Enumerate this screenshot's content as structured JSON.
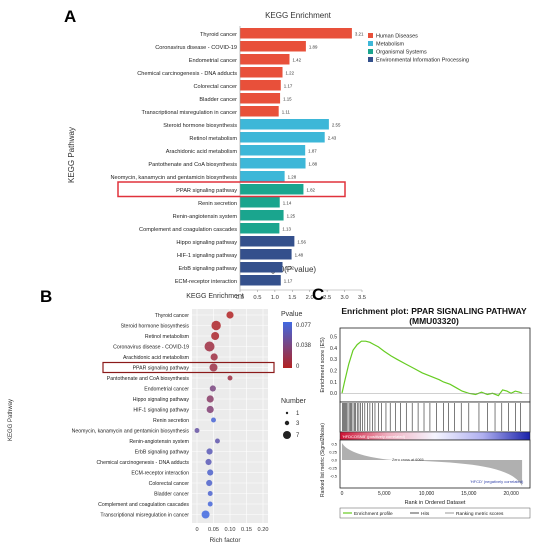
{
  "chart_data": [
    {
      "type": "bar",
      "panel_label": "A",
      "title": "KEGG Enrichment",
      "xlabel": "−log10(P value)",
      "ylabel": "KEGG Pathway",
      "xlim": [
        0,
        3.5
      ],
      "xticks": [
        "0.0",
        "0.5",
        "1.0",
        "1.5",
        "2.0",
        "2.5",
        "3.0",
        "3.5"
      ],
      "legend_position": "top-right",
      "highlighted_category": "PPAR signaling pathway",
      "legend": [
        {
          "name": "Human Diseases",
          "color": "#e8503a"
        },
        {
          "name": "Metabolism",
          "color": "#3db7d8"
        },
        {
          "name": "Organismal Systems",
          "color": "#1aa58e"
        },
        {
          "name": "Environmental Information Processing",
          "color": "#34508c"
        }
      ],
      "categories": [
        "Thyroid cancer",
        "Coronavirus disease - COVID-19",
        "Endometrial cancer",
        "Chemical carcinogenesis - DNA adducts",
        "Colorectal cancer",
        "Bladder cancer",
        "Transcriptional misregulation in cancer",
        "Steroid hormone biosynthesis",
        "Retinol metabolism",
        "Arachidonic acid metabolism",
        "Pantothenate and CoA biosynthesis",
        "Neomycin, kanamycin and gentamicin biosynthesis",
        "PPAR signaling pathway",
        "Renin secretion",
        "Renin-angiotensin system",
        "Complement and coagulation cascades",
        "Hippo signaling pathway",
        "HIF-1 signaling pathway",
        "ErbB signaling pathway",
        "ECM-receptor interaction"
      ],
      "values": [
        3.21,
        1.89,
        1.42,
        1.22,
        1.17,
        1.15,
        1.11,
        2.55,
        2.43,
        1.87,
        1.88,
        1.28,
        1.82,
        1.14,
        1.25,
        1.13,
        1.56,
        1.48,
        1.22,
        1.17
      ],
      "value_labels": [
        "3.21",
        "1.89",
        "1.42",
        "1.22",
        "1.17",
        "1.15",
        "1.11",
        "2.55",
        "2.43",
        "1.87",
        "1.88",
        "1.28",
        "1.82",
        "1.14",
        "1.25",
        "1.13",
        "1.56",
        "1.48",
        "1.22",
        "1.17"
      ],
      "groups": [
        0,
        0,
        0,
        0,
        0,
        0,
        0,
        1,
        1,
        1,
        1,
        1,
        2,
        2,
        2,
        2,
        3,
        3,
        3,
        3
      ]
    },
    {
      "type": "scatter",
      "panel_label": "B",
      "title": "KEGG Enrichment",
      "xlabel": "Rich factor",
      "ylabel": "KEGG Pathway",
      "xlim": [
        0,
        0.2
      ],
      "xticks": [
        "0",
        "0.05",
        "0.10",
        "0.15",
        "0.20"
      ],
      "grid": true,
      "highlighted_category": "PPAR signaling pathway",
      "color_legend": {
        "title": "Pvalue",
        "ticks": [
          "0.077",
          "0.038",
          "0"
        ],
        "low_color": "#b22222",
        "high_color": "#4169e1"
      },
      "size_legend": {
        "title": "Number",
        "labels": [
          "1",
          "3",
          "7"
        ]
      },
      "categories": [
        "Thyroid cancer",
        "Steroid hormone biosynthesis",
        "Retinol metabolism",
        "Coronavirus disease - COVID-19",
        "Arachidonic acid metabolism",
        "PPAR signaling pathway",
        "Pantothenate and CoA biosynthesis",
        "Endometrial cancer",
        "Hippo signaling pathway",
        "HIF-1 signaling pathway",
        "Renin secretion",
        "Neomycin, kanamycin and gentamicin biosynthesis",
        "Renin-angiotensin system",
        "ErbB signaling pathway",
        "Chemical carcinogenesis - DNA adducts",
        "ECM-receptor interaction",
        "Colorectal cancer",
        "Bladder cancer",
        "Complement and coagulation cascades",
        "Transcriptional misregulation in cancer"
      ],
      "x": [
        0.1,
        0.058,
        0.055,
        0.038,
        0.052,
        0.05,
        0.1,
        0.048,
        0.04,
        0.04,
        0.05,
        0.0,
        0.062,
        0.038,
        0.035,
        0.04,
        0.037,
        0.04,
        0.04,
        0.026
      ],
      "number": [
        3,
        6,
        4,
        7,
        3,
        4,
        1,
        2,
        3,
        3,
        1,
        1,
        1,
        2,
        2,
        2,
        2,
        1,
        1,
        4
      ],
      "pvalue": [
        0.001,
        0.003,
        0.004,
        0.013,
        0.013,
        0.015,
        0.013,
        0.038,
        0.028,
        0.033,
        0.072,
        0.052,
        0.056,
        0.06,
        0.06,
        0.068,
        0.068,
        0.07,
        0.074,
        0.077
      ]
    },
    {
      "type": "line",
      "panel_label": "C",
      "title": "Enrichment plot: PPAR SIGNALING PATHWAY",
      "subtitle": "(MMU03320)",
      "ylabel_top": "Enrichment score (ES)",
      "ylabel_bottom": "Ranked list metric (Signal2Noise)",
      "xlabel": "Rank in Ordered Dataset",
      "xlim": [
        0,
        22000
      ],
      "ylim": [
        -0.05,
        0.55
      ],
      "xticks": [
        "0",
        "5,000",
        "10,000",
        "15,000",
        "20,000"
      ],
      "yticks": [
        "0.5",
        "0.4",
        "0.3",
        "0.2",
        "0.1",
        "0.0"
      ],
      "metric_ticks": [
        "0.5",
        "0.25",
        "0.0",
        "-0.25",
        "-0.5"
      ],
      "positive_label": "'HFDCOSNB' (positively correlated)",
      "negative_label": "'HFCD' (negatively correlated)",
      "zero_cross_label": "Zero cross at 6065",
      "legend": [
        "Enrichment profile",
        "Hits",
        "Ranking metric scores"
      ],
      "line_color": "#66cc22",
      "series": [
        {
          "x": [
            0,
            300,
            800,
            1300,
            1800,
            2300,
            2800,
            3300,
            3800,
            4300,
            5000,
            5800,
            6500,
            7500,
            8500,
            9500,
            10500,
            11500,
            12000,
            12800,
            13500,
            14200,
            15000,
            15800,
            16500,
            17200,
            17800,
            18500,
            19000,
            19500,
            20000,
            20500,
            21000,
            21300
          ],
          "values": [
            0.0,
            0.1,
            0.26,
            0.38,
            0.43,
            0.46,
            0.46,
            0.45,
            0.43,
            0.41,
            0.37,
            0.33,
            0.3,
            0.26,
            0.22,
            0.18,
            0.15,
            0.12,
            0.1,
            0.08,
            0.05,
            0.02,
            0.0,
            -0.01,
            0.01,
            -0.01,
            0.0,
            -0.02,
            0.03,
            0.02,
            0.0,
            0.02,
            0.01,
            0.0
          ]
        }
      ],
      "hit_ranks": [
        80,
        180,
        300,
        420,
        560,
        700,
        850,
        1000,
        1150,
        1300,
        1450,
        1600,
        1800,
        2000,
        2200,
        2450,
        2700,
        3000,
        3300,
        3600,
        3900,
        4300,
        4700,
        5200,
        5700,
        6300,
        6900,
        7600,
        8300,
        9000,
        9700,
        10400,
        11200,
        12000,
        12600,
        13300,
        14100,
        15000,
        16200,
        17200,
        18100,
        18900,
        19700,
        20500,
        21100
      ]
    }
  ]
}
